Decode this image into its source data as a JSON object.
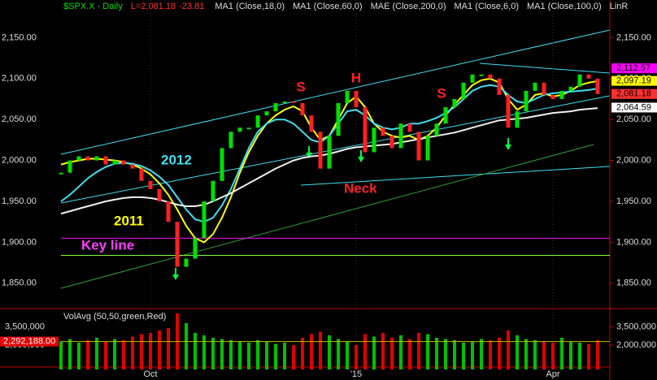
{
  "chart_data": {
    "type": "candlestick",
    "symbol": "$SPX.X - Daily",
    "last": "L=2,081.18",
    "change": "-23.81",
    "studies": [
      "MA1 (Close,18,0)",
      "MA1 (Close,60,0)",
      "MAE (Close,200,0)",
      "MA1 (Close,6,0)",
      "MA1 (Close,100,0)",
      "LinR"
    ],
    "xlim": [
      0,
      60
    ],
    "xticks": [
      {
        "value": 10,
        "label": "Oct"
      },
      {
        "value": 33,
        "label": "'15"
      },
      {
        "value": 55,
        "label": "Apr"
      }
    ],
    "x": [
      0,
      1,
      2,
      3,
      4,
      5,
      6,
      7,
      8,
      9,
      10,
      11,
      12,
      13,
      14,
      15,
      16,
      17,
      18,
      19,
      20,
      21,
      22,
      23,
      24,
      25,
      26,
      27,
      28,
      29,
      30,
      31,
      32,
      33,
      34,
      35,
      36,
      37,
      38,
      39,
      40,
      41,
      42,
      43,
      44,
      45,
      46,
      47,
      48,
      49,
      50,
      51,
      52,
      53,
      54,
      55,
      56,
      57,
      58,
      59,
      60
    ],
    "ylim": [
      1819,
      2196
    ],
    "yticks": [
      {
        "value": 1850,
        "label": "1,850.00"
      },
      {
        "value": 1900,
        "label": "1,900.00"
      },
      {
        "value": 1950,
        "label": "1,950.00"
      },
      {
        "value": 2000,
        "label": "2,000.00"
      },
      {
        "value": 2050,
        "label": "2,050.00"
      },
      {
        "value": 2100,
        "label": "2,100.00"
      },
      {
        "value": 2150,
        "label": "2,150.00"
      }
    ],
    "series": [
      {
        "name": "Close",
        "color": "#00e000",
        "down_color": "#ff2020",
        "values": [
          1985,
          2000,
          2005,
          2000,
          2005,
          1995,
          2000,
          1995,
          1990,
          1975,
          1965,
          1950,
          1925,
          1870,
          1880,
          1905,
          1950,
          1975,
          2015,
          2035,
          2040,
          2040,
          2055,
          2060,
          2070,
          2072,
          2070,
          2055,
          2035,
          1990,
          2030,
          2070,
          2085,
          2065,
          2010,
          2040,
          2030,
          2015,
          2045,
          2035,
          2000,
          2030,
          2045,
          2065,
          2075,
          2095,
          2105,
          2105,
          2100,
          2080,
          2040,
          2060,
          2085,
          2095,
          2080,
          2075,
          2085,
          2090,
          2105,
          2100,
          2081
        ]
      },
      {
        "name": "MA18",
        "color": "#ffff00",
        "values": [
          1995,
          1998,
          2000,
          2002,
          2002,
          2001,
          2000,
          1998,
          1995,
          1990,
          1983,
          1972,
          1958,
          1940,
          1920,
          1905,
          1900,
          1910,
          1930,
          1955,
          1985,
          2010,
          2030,
          2045,
          2055,
          2062,
          2066,
          2060,
          2040,
          2025,
          2030,
          2050,
          2070,
          2078,
          2065,
          2045,
          2035,
          2030,
          2028,
          2030,
          2025,
          2030,
          2040,
          2055,
          2068,
          2080,
          2092,
          2098,
          2100,
          2095,
          2075,
          2062,
          2068,
          2080,
          2082,
          2078,
          2080,
          2085,
          2092,
          2095,
          2097
        ]
      },
      {
        "name": "MA60",
        "color": "#40e0f0",
        "values": [
          1950,
          1958,
          1968,
          1978,
          1986,
          1992,
          1996,
          1997,
          1996,
          1993,
          1988,
          1980,
          1970,
          1955,
          1940,
          1928,
          1925,
          1930,
          1945,
          1965,
          1990,
          2015,
          2035,
          2045,
          2050,
          2050,
          2045,
          2035,
          2025,
          2022,
          2030,
          2045,
          2060,
          2062,
          2055,
          2045,
          2040,
          2038,
          2040,
          2045,
          2045,
          2048,
          2052,
          2058,
          2065,
          2075,
          2085,
          2090,
          2092,
          2090,
          2080,
          2072,
          2070,
          2075,
          2080,
          2082,
          2083,
          2084,
          2085,
          2086,
          2088
        ]
      },
      {
        "name": "MA100",
        "color": "#f0f0f0",
        "values": [
          1935,
          1938,
          1941,
          1944,
          1947,
          1950,
          1952,
          1954,
          1955,
          1955,
          1954,
          1952,
          1949,
          1946,
          1944,
          1944,
          1946,
          1950,
          1955,
          1960,
          1966,
          1972,
          1978,
          1984,
          1990,
          1995,
          2000,
          2003,
          2005,
          2006,
          2008,
          2011,
          2014,
          2016,
          2017,
          2018,
          2019,
          2020,
          2022,
          2024,
          2026,
          2028,
          2030,
          2032,
          2034,
          2037,
          2040,
          2043,
          2046,
          2049,
          2050,
          2051,
          2052,
          2054,
          2056,
          2058,
          2059,
          2060,
          2062,
          2063,
          2064
        ]
      }
    ],
    "reference_lines": [
      {
        "value": 1905,
        "color": "#ff00ff"
      },
      {
        "value": 1884,
        "color": "#80ff40"
      }
    ],
    "price_badges": [
      {
        "value": 2112.57,
        "label": "2,112.57",
        "color": "#ff00ff"
      },
      {
        "value": 2097.19,
        "label": "2,097.19",
        "color": "#ffff00"
      },
      {
        "value": 2081.18,
        "label": "2,081.18",
        "color": "#ff3030"
      },
      {
        "value": 2064.59,
        "label": "2,064.59",
        "color": "#ffffff"
      }
    ],
    "annotations": [
      "S",
      "H",
      "S",
      "2012",
      "2011",
      "Key line",
      "Neck"
    ],
    "volume": {
      "title": "VolAvg (50,50,green,Red)",
      "ylim": [
        0,
        5000000
      ],
      "yticks": [
        {
          "value": 3500000,
          "label": "3,500,000"
        },
        {
          "value": 2000000,
          "label": "2,000,000"
        }
      ],
      "badge": {
        "value": 2292188,
        "label": "2,292,188.00"
      },
      "values": [
        2300000,
        2500000,
        2200000,
        2400000,
        2600000,
        2300000,
        2500000,
        2400000,
        2700000,
        2900000,
        3000000,
        3200000,
        3400000,
        4600000,
        3800000,
        3000000,
        2800000,
        2600000,
        2500000,
        2400000,
        2300000,
        2200000,
        2400000,
        2300000,
        2100000,
        2200000,
        2000000,
        2600000,
        2900000,
        3100000,
        2800000,
        2500000,
        2300000,
        2000000,
        2900000,
        2700000,
        3000000,
        2600000,
        2800000,
        2500000,
        3000000,
        2900000,
        2600000,
        2500000,
        2400000,
        2200000,
        2300000,
        2500000,
        2400000,
        2600000,
        3200000,
        2800000,
        2500000,
        2400000,
        2300000,
        2200000,
        2600000,
        2300000,
        2200000,
        2100000,
        2400000
      ]
    }
  }
}
